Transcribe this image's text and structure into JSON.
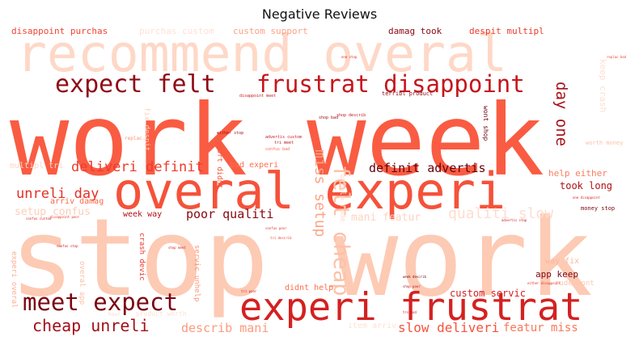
{
  "title": "Negative Reviews",
  "chart_data": {
    "type": "wordcloud",
    "title": "Negative Reviews",
    "words": [
      {
        "text": "work week",
        "weight": 100,
        "color": "#f95c42"
      },
      {
        "text": "stop work",
        "weight": 92,
        "color": "#fdcab4"
      },
      {
        "text": "overal experi",
        "weight": 58,
        "color": "#f5523a"
      },
      {
        "text": "recommend overal",
        "weight": 55,
        "color": "#fed8c7"
      },
      {
        "text": "experi frustrat",
        "weight": 48,
        "color": "#d42121"
      },
      {
        "text": "frustrat disappoint",
        "weight": 33,
        "color": "#c4161c"
      },
      {
        "text": "expect felt",
        "weight": 31,
        "color": "#8e0b16"
      },
      {
        "text": "meet expect",
        "weight": 30,
        "color": "#7a0510"
      },
      {
        "text": "felt cheap",
        "weight": 25,
        "color": "#fcc1a8"
      },
      {
        "text": "cheap unreli",
        "weight": 19,
        "color": "#a11119"
      },
      {
        "text": "day one",
        "weight": 19,
        "color": "#a7121a"
      },
      {
        "text": "qualiti slow",
        "weight": 18,
        "color": "#feddd0"
      },
      {
        "text": "miss setup",
        "weight": 18,
        "color": "#fca486"
      },
      {
        "text": "deliveri definit",
        "weight": 17,
        "color": "#ee3a2c"
      },
      {
        "text": "unreli day",
        "weight": 17,
        "color": "#e32f27"
      },
      {
        "text": "slow deliveri",
        "weight": 16,
        "color": "#f5533b"
      },
      {
        "text": "poor qualiti",
        "weight": 15,
        "color": "#85090e"
      },
      {
        "text": "definit advertis",
        "weight": 15,
        "color": "#67000d"
      },
      {
        "text": "describ mani",
        "weight": 15,
        "color": "#fc9b7c"
      },
      {
        "text": "featur miss",
        "weight": 14,
        "color": "#fa7759"
      },
      {
        "text": "mani featur",
        "weight": 13,
        "color": "#fdd4c2"
      },
      {
        "text": "setup confus",
        "weight": 13,
        "color": "#fdcdb9"
      },
      {
        "text": "custom servic",
        "weight": 12,
        "color": "#d32020"
      },
      {
        "text": "took long",
        "weight": 12,
        "color": "#ab1016"
      },
      {
        "text": "help either",
        "weight": 11,
        "color": "#fb7c5c"
      },
      {
        "text": "app keep",
        "weight": 11,
        "color": "#7b0712"
      },
      {
        "text": "keep crash",
        "weight": 11,
        "color": "#fedfd3"
      },
      {
        "text": "disappoint purchas",
        "weight": 11,
        "color": "#f14432"
      },
      {
        "text": "purchas custom",
        "weight": 11,
        "color": "#fee1d4"
      },
      {
        "text": "custom support",
        "weight": 11,
        "color": "#fca184"
      },
      {
        "text": "damag took",
        "weight": 11,
        "color": "#8a0812"
      },
      {
        "text": "despit multipl",
        "weight": 11,
        "color": "#ed392b"
      },
      {
        "text": "bad experi",
        "weight": 10,
        "color": "#fb7051"
      },
      {
        "text": "arriv damag",
        "weight": 10,
        "color": "#fa6849"
      },
      {
        "text": "week way",
        "weight": 10,
        "color": "#b11218"
      },
      {
        "text": "way fix",
        "weight": 10,
        "color": "#fcb79c"
      },
      {
        "text": "didnt help",
        "weight": 10,
        "color": "#fb6f50"
      },
      {
        "text": "item arriv",
        "weight": 10,
        "color": "#fee2d5"
      },
      {
        "text": "multipl tri",
        "weight": 10,
        "color": "#fdd7c6"
      },
      {
        "text": "crash devic",
        "weight": 9,
        "color": "#e93429"
      },
      {
        "text": "rude wont",
        "weight": 9,
        "color": "#fdc6b0"
      },
      {
        "text": "experi overal",
        "weight": 9,
        "color": "#fcad90"
      },
      {
        "text": "fix despit",
        "weight": 9,
        "color": "#fdd0bc"
      },
      {
        "text": "support didnt",
        "weight": 9,
        "color": "#f6583e"
      },
      {
        "text": "servic unhelp",
        "weight": 9,
        "color": "#fc9474"
      },
      {
        "text": "unhelp rude",
        "weight": 9,
        "color": "#fedbcc"
      },
      {
        "text": "overal app",
        "weight": 9,
        "color": "#fcbea5"
      },
      {
        "text": "wont shop",
        "weight": 8,
        "color": "#70020f"
      },
      {
        "text": "product worth",
        "weight": 8,
        "color": "#fee0d2"
      },
      {
        "text": "worth money",
        "weight": 7,
        "color": "#fcbfa7"
      },
      {
        "text": "money stop",
        "weight": 7,
        "color": "#7c0510"
      },
      {
        "text": "terribl product",
        "weight": 7,
        "color": "#8b0a13"
      },
      {
        "text": "replac",
        "weight": 6,
        "color": "#fc9272"
      },
      {
        "text": "hour",
        "weight": 6,
        "color": "#fed9c9"
      },
      {
        "text": "shop bad",
        "weight": 5,
        "color": "#a50f15"
      },
      {
        "text": "either stop",
        "weight": 5,
        "color": "#a50f15"
      },
      {
        "text": "advertis custom",
        "weight": 5,
        "color": "#ca181d"
      },
      {
        "text": "tri meet",
        "weight": 5,
        "color": "#bb141b"
      },
      {
        "text": "confus bad",
        "weight": 5,
        "color": "#fb6a4a"
      },
      {
        "text": "disappoint meet",
        "weight": 5,
        "color": "#cb181d"
      },
      {
        "text": "shop describ",
        "weight": 5,
        "color": "#bd151c"
      },
      {
        "text": "confus custom",
        "weight": 4,
        "color": "#d72322"
      },
      {
        "text": "disappoint poor",
        "weight": 4,
        "color": "#e53228"
      },
      {
        "text": "confus stop",
        "weight": 4,
        "color": "#cb181d"
      },
      {
        "text": "shop meet",
        "weight": 4,
        "color": "#d21f20"
      },
      {
        "text": "confus poor",
        "weight": 4,
        "color": "#e32f27"
      },
      {
        "text": "tri describ",
        "weight": 4,
        "color": "#ef3c2c"
      },
      {
        "text": "week describ",
        "weight": 4,
        "color": "#67000d"
      },
      {
        "text": "shop poor",
        "weight": 4,
        "color": "#b11218"
      },
      {
        "text": "tri poor",
        "weight": 4,
        "color": "#cf1c1f"
      },
      {
        "text": "trs bad",
        "weight": 4,
        "color": "#c5171c"
      },
      {
        "text": "one disappoint",
        "weight": 4,
        "color": "#d52221"
      },
      {
        "text": "advertis stop",
        "weight": 4,
        "color": "#c9181d"
      },
      {
        "text": "replac bad",
        "weight": 4,
        "color": "#f03f2e"
      },
      {
        "text": "one stop",
        "weight": 4,
        "color": "#de2b25"
      },
      {
        "text": "either disappoint",
        "weight": 4,
        "color": "#e22e27"
      }
    ]
  }
}
